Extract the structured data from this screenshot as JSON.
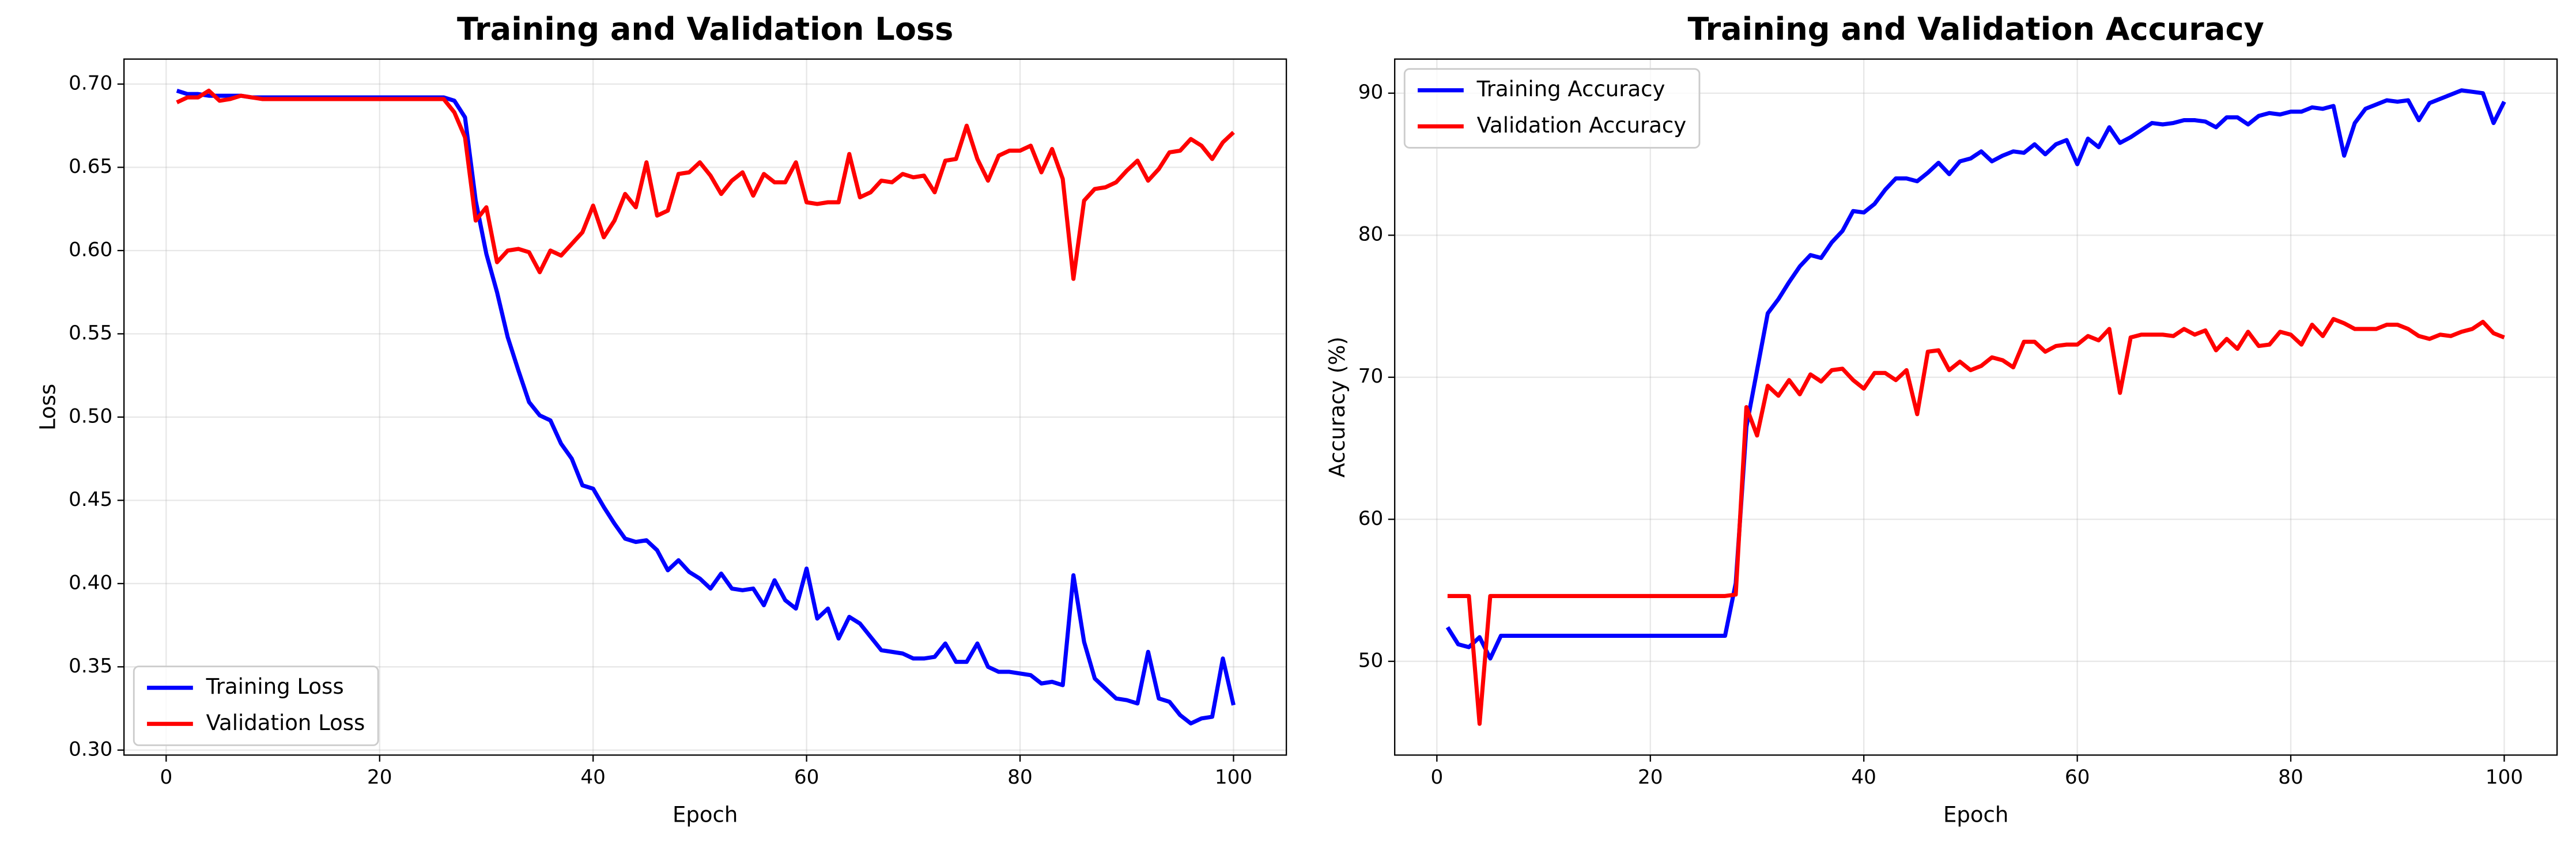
{
  "chart_data": [
    {
      "type": "line",
      "title": "Training and Validation Loss",
      "x_label": "Epoch",
      "y_label": "Loss",
      "x": [
        1,
        2,
        3,
        4,
        5,
        6,
        7,
        8,
        9,
        10,
        11,
        12,
        13,
        14,
        15,
        16,
        17,
        18,
        19,
        20,
        21,
        22,
        23,
        24,
        25,
        26,
        27,
        28,
        29,
        30,
        31,
        32,
        33,
        34,
        35,
        36,
        37,
        38,
        39,
        40,
        41,
        42,
        43,
        44,
        45,
        46,
        47,
        48,
        49,
        50,
        51,
        52,
        53,
        54,
        55,
        56,
        57,
        58,
        59,
        60,
        61,
        62,
        63,
        64,
        65,
        66,
        67,
        68,
        69,
        70,
        71,
        72,
        73,
        74,
        75,
        76,
        77,
        78,
        79,
        80,
        81,
        82,
        83,
        84,
        85,
        86,
        87,
        88,
        89,
        90,
        91,
        92,
        93,
        94,
        95,
        96,
        97,
        98,
        99,
        100
      ],
      "series": [
        {
          "name": "Training Loss",
          "color": "#0000ff",
          "values": [
            0.696,
            0.694,
            0.694,
            0.693,
            0.693,
            0.693,
            0.693,
            0.692,
            0.692,
            0.692,
            0.692,
            0.692,
            0.692,
            0.692,
            0.692,
            0.692,
            0.692,
            0.692,
            0.692,
            0.692,
            0.692,
            0.692,
            0.692,
            0.692,
            0.692,
            0.692,
            0.69,
            0.68,
            0.63,
            0.598,
            0.575,
            0.548,
            0.528,
            0.509,
            0.501,
            0.498,
            0.484,
            0.475,
            0.459,
            0.457,
            0.446,
            0.436,
            0.427,
            0.425,
            0.426,
            0.42,
            0.408,
            0.414,
            0.407,
            0.403,
            0.397,
            0.406,
            0.397,
            0.396,
            0.397,
            0.387,
            0.402,
            0.39,
            0.385,
            0.409,
            0.379,
            0.385,
            0.367,
            0.38,
            0.376,
            0.368,
            0.36,
            0.359,
            0.358,
            0.355,
            0.355,
            0.356,
            0.364,
            0.353,
            0.353,
            0.364,
            0.35,
            0.347,
            0.347,
            0.346,
            0.345,
            0.34,
            0.341,
            0.339,
            0.405,
            0.365,
            0.343,
            0.337,
            0.331,
            0.33,
            0.328,
            0.359,
            0.331,
            0.329,
            0.321,
            0.316,
            0.319,
            0.32,
            0.355,
            0.327
          ]
        },
        {
          "name": "Validation Loss",
          "color": "#ff0000",
          "values": [
            0.689,
            0.692,
            0.692,
            0.696,
            0.69,
            0.691,
            0.693,
            0.692,
            0.691,
            0.691,
            0.691,
            0.691,
            0.691,
            0.691,
            0.691,
            0.691,
            0.691,
            0.691,
            0.691,
            0.691,
            0.691,
            0.691,
            0.691,
            0.691,
            0.691,
            0.691,
            0.683,
            0.668,
            0.618,
            0.626,
            0.593,
            0.6,
            0.601,
            0.599,
            0.587,
            0.6,
            0.597,
            0.604,
            0.611,
            0.627,
            0.608,
            0.618,
            0.634,
            0.626,
            0.653,
            0.621,
            0.624,
            0.646,
            0.647,
            0.653,
            0.645,
            0.634,
            0.642,
            0.647,
            0.633,
            0.646,
            0.641,
            0.641,
            0.653,
            0.629,
            0.628,
            0.629,
            0.629,
            0.658,
            0.632,
            0.635,
            0.642,
            0.641,
            0.646,
            0.644,
            0.645,
            0.635,
            0.654,
            0.655,
            0.675,
            0.655,
            0.642,
            0.657,
            0.66,
            0.66,
            0.663,
            0.647,
            0.661,
            0.643,
            0.583,
            0.63,
            0.637,
            0.638,
            0.641,
            0.648,
            0.654,
            0.642,
            0.649,
            0.659,
            0.66,
            0.667,
            0.663,
            0.655,
            0.665,
            0.671
          ]
        }
      ],
      "xlim": [
        -3.95,
        104.95
      ],
      "ylim": [
        0.297,
        0.715
      ],
      "xticks": [
        0,
        20,
        40,
        60,
        80,
        100
      ],
      "yticks": [
        {
          "value": 0.3,
          "label": "0.30"
        },
        {
          "value": 0.35,
          "label": "0.35"
        },
        {
          "value": 0.4,
          "label": "0.40"
        },
        {
          "value": 0.45,
          "label": "0.45"
        },
        {
          "value": 0.5,
          "label": "0.50"
        },
        {
          "value": 0.55,
          "label": "0.55"
        },
        {
          "value": 0.6,
          "label": "0.60"
        },
        {
          "value": 0.65,
          "label": "0.65"
        },
        {
          "value": 0.7,
          "label": "0.70"
        }
      ],
      "grid": true,
      "legend": "lower left"
    },
    {
      "type": "line",
      "title": "Training and Validation Accuracy",
      "x_label": "Epoch",
      "y_label": "Accuracy (%)",
      "x": [
        1,
        2,
        3,
        4,
        5,
        6,
        7,
        8,
        9,
        10,
        11,
        12,
        13,
        14,
        15,
        16,
        17,
        18,
        19,
        20,
        21,
        22,
        23,
        24,
        25,
        26,
        27,
        28,
        29,
        30,
        31,
        32,
        33,
        34,
        35,
        36,
        37,
        38,
        39,
        40,
        41,
        42,
        43,
        44,
        45,
        46,
        47,
        48,
        49,
        50,
        51,
        52,
        53,
        54,
        55,
        56,
        57,
        58,
        59,
        60,
        61,
        62,
        63,
        64,
        65,
        66,
        67,
        68,
        69,
        70,
        71,
        72,
        73,
        74,
        75,
        76,
        77,
        78,
        79,
        80,
        81,
        82,
        83,
        84,
        85,
        86,
        87,
        88,
        89,
        90,
        91,
        92,
        93,
        94,
        95,
        96,
        97,
        98,
        99,
        100
      ],
      "series": [
        {
          "name": "Training Accuracy",
          "color": "#0000ff",
          "values": [
            52.4,
            51.2,
            51.0,
            51.7,
            50.2,
            51.8,
            51.8,
            51.8,
            51.8,
            51.8,
            51.8,
            51.8,
            51.8,
            51.8,
            51.8,
            51.8,
            51.8,
            51.8,
            51.8,
            51.8,
            51.8,
            51.8,
            51.8,
            51.8,
            51.8,
            51.8,
            51.8,
            55.5,
            66.5,
            70.5,
            74.5,
            75.5,
            76.7,
            77.8,
            78.6,
            78.4,
            79.5,
            80.3,
            81.7,
            81.6,
            82.2,
            83.2,
            84.0,
            84.0,
            83.8,
            84.4,
            85.1,
            84.3,
            85.2,
            85.4,
            85.9,
            85.2,
            85.6,
            85.9,
            85.8,
            86.4,
            85.7,
            86.4,
            86.7,
            85.0,
            86.8,
            86.2,
            87.6,
            86.5,
            86.9,
            87.4,
            87.9,
            87.8,
            87.9,
            88.1,
            88.1,
            88.0,
            87.6,
            88.3,
            88.3,
            87.8,
            88.4,
            88.6,
            88.5,
            88.7,
            88.7,
            89.0,
            88.9,
            89.1,
            85.6,
            87.9,
            88.9,
            89.2,
            89.5,
            89.4,
            89.5,
            88.1,
            89.3,
            89.6,
            89.9,
            90.2,
            90.1,
            90.0,
            87.9,
            89.4
          ]
        },
        {
          "name": "Validation Accuracy",
          "color": "#ff0000",
          "values": [
            54.6,
            54.6,
            54.6,
            45.6,
            54.6,
            54.6,
            54.6,
            54.6,
            54.6,
            54.6,
            54.6,
            54.6,
            54.6,
            54.6,
            54.6,
            54.6,
            54.6,
            54.6,
            54.6,
            54.6,
            54.6,
            54.6,
            54.6,
            54.6,
            54.6,
            54.6,
            54.6,
            54.7,
            67.9,
            65.9,
            69.4,
            68.7,
            69.8,
            68.8,
            70.2,
            69.7,
            70.5,
            70.6,
            69.8,
            69.2,
            70.3,
            70.3,
            69.8,
            70.5,
            67.4,
            71.8,
            71.9,
            70.5,
            71.1,
            70.5,
            70.8,
            71.4,
            71.2,
            70.7,
            72.5,
            72.5,
            71.8,
            72.2,
            72.3,
            72.3,
            72.9,
            72.6,
            73.4,
            68.9,
            72.8,
            73.0,
            73.0,
            73.0,
            72.9,
            73.4,
            73.0,
            73.3,
            71.9,
            72.7,
            72.0,
            73.2,
            72.2,
            72.3,
            73.2,
            73.0,
            72.3,
            73.7,
            72.9,
            74.1,
            73.8,
            73.4,
            73.4,
            73.4,
            73.7,
            73.7,
            73.4,
            72.9,
            72.7,
            73.0,
            72.9,
            73.2,
            73.4,
            73.9,
            73.1,
            72.8
          ]
        }
      ],
      "xlim": [
        -3.95,
        104.95
      ],
      "ylim": [
        43.4,
        92.4
      ],
      "xticks": [
        0,
        20,
        40,
        60,
        80,
        100
      ],
      "yticks": [
        50,
        60,
        70,
        80,
        90
      ],
      "grid": true,
      "legend": "upper left"
    }
  ]
}
